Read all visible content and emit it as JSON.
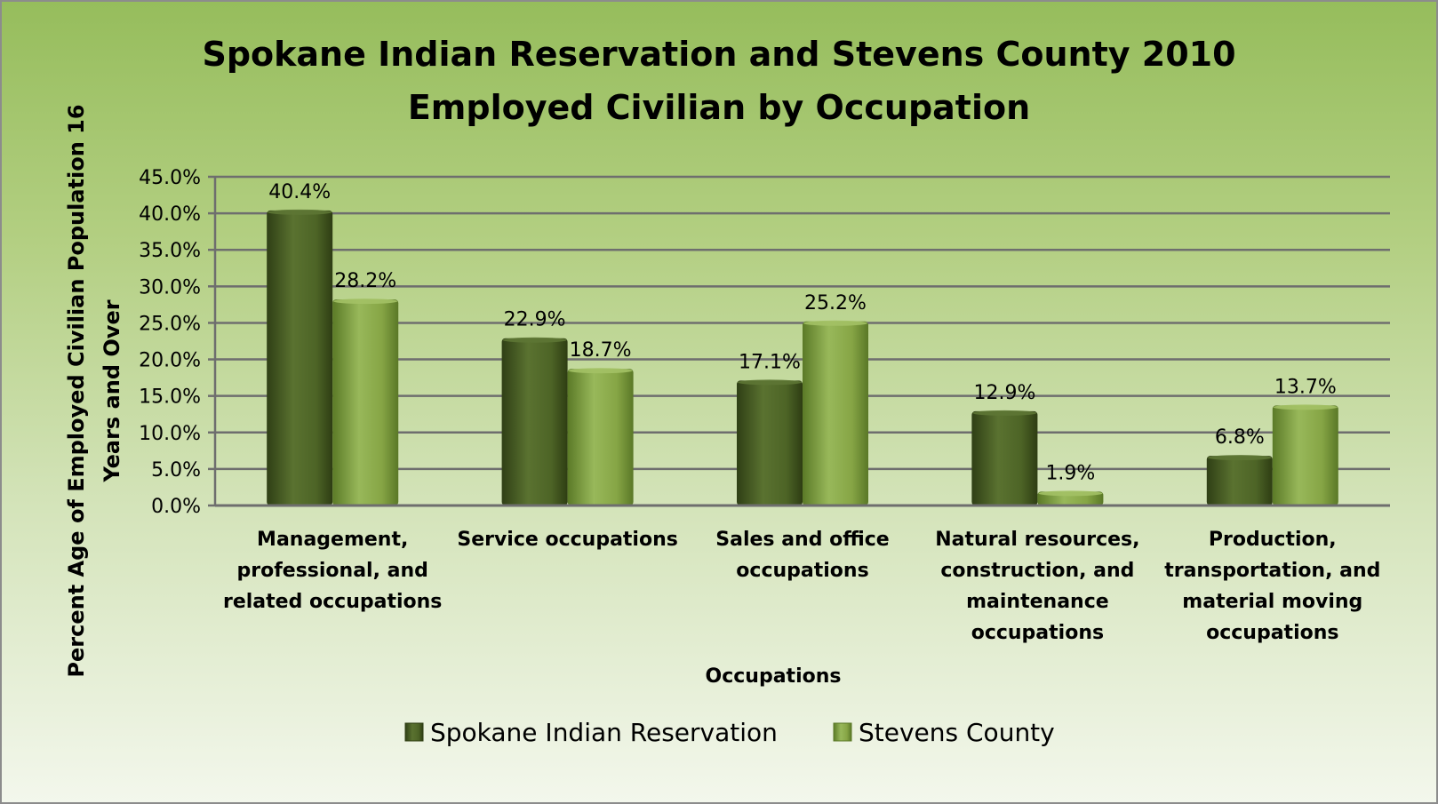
{
  "chart_data": {
    "type": "bar",
    "title_lines": [
      "Spokane Indian Reservation and Stevens County 2010",
      "Employed Civilian by Occupation"
    ],
    "ylabel_lines": [
      "Percent Age of Employed Civilian Population 16",
      "Years and Over"
    ],
    "xlabel": "Occupations",
    "ylim": [
      0,
      45
    ],
    "ytick_labels": [
      "0.0%",
      "5.0%",
      "10.0%",
      "15.0%",
      "20.0%",
      "25.0%",
      "30.0%",
      "35.0%",
      "40.0%",
      "45.0%"
    ],
    "grid": true,
    "legend_position": "bottom",
    "categories": [
      {
        "lines": [
          "Management,",
          "professional, and",
          "related occupations"
        ]
      },
      {
        "lines": [
          "Service occupations"
        ]
      },
      {
        "lines": [
          "Sales and office",
          "occupations"
        ]
      },
      {
        "lines": [
          "Natural resources,",
          "construction, and",
          "maintenance",
          "occupations"
        ]
      },
      {
        "lines": [
          "Production,",
          "transportation, and",
          "material moving",
          "occupations"
        ]
      }
    ],
    "series": [
      {
        "name": "Spokane Indian Reservation",
        "values": [
          40.4,
          22.9,
          17.1,
          12.9,
          6.8
        ],
        "labels": [
          "40.4%",
          "22.9%",
          "17.1%",
          "12.9%",
          "6.8%"
        ],
        "color": "#4f6228"
      },
      {
        "name": "Stevens County",
        "values": [
          28.2,
          18.7,
          25.2,
          1.9,
          13.7
        ],
        "labels": [
          "28.2%",
          "18.7%",
          "25.2%",
          "1.9%",
          "13.7%"
        ],
        "color": "#77933c"
      }
    ]
  }
}
